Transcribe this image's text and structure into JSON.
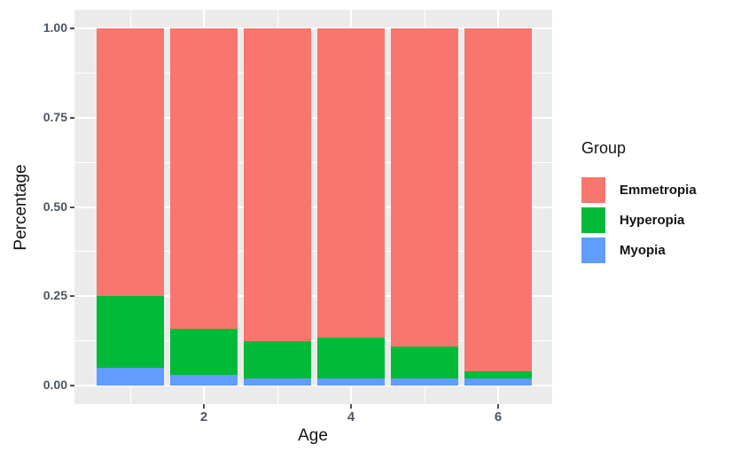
{
  "chart_data": {
    "type": "bar",
    "stacked": true,
    "orientation": "vertical",
    "title": "",
    "xlabel": "Age",
    "ylabel": "Percentage",
    "legend_title": "Group",
    "legend_position": "right",
    "grid": true,
    "categories": [
      1,
      2,
      3,
      4,
      5,
      6
    ],
    "x_ticks": [
      2,
      4,
      6
    ],
    "x_minor_ticks": [
      1,
      3,
      5
    ],
    "y_ticks": [
      "0.00",
      "0.25",
      "0.50",
      "0.75",
      "1.00"
    ],
    "y_minor_ticks": [
      0.125,
      0.375,
      0.625,
      0.875
    ],
    "ylim": [
      0,
      1
    ],
    "series": [
      {
        "name": "Myopia",
        "color": "#619CFF",
        "values": [
          0.05,
          0.03,
          0.02,
          0.02,
          0.02,
          0.02
        ]
      },
      {
        "name": "Hyperopia",
        "color": "#00BA38",
        "values": [
          0.2,
          0.13,
          0.105,
          0.115,
          0.09,
          0.02
        ]
      },
      {
        "name": "Emmetropia",
        "color": "#F8766D",
        "values": [
          0.75,
          0.84,
          0.875,
          0.865,
          0.89,
          0.96
        ]
      }
    ],
    "legend_order": [
      "Emmetropia",
      "Hyperopia",
      "Myopia"
    ]
  },
  "style": {
    "panel_background": "#EBEBEB",
    "grid_color": "#FFFFFF",
    "tick_label_color": "#4b5563",
    "axis_title_color": "#141414",
    "figure_background": "#FFFFFF"
  }
}
